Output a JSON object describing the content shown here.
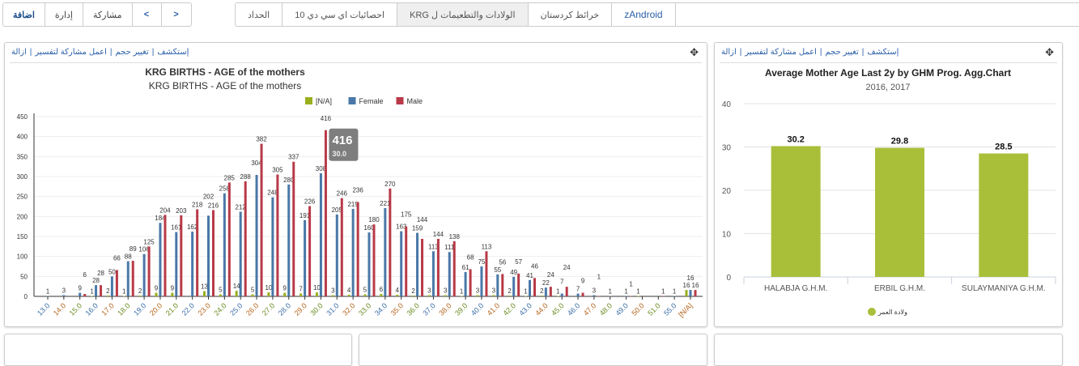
{
  "toolbar": {
    "buttons": [
      "اضافة",
      "إدارة",
      "مشاركة",
      "<",
      ">"
    ]
  },
  "tabs": [
    {
      "label": "الحداد"
    },
    {
      "label": "10 احصائيات اي سي دي"
    },
    {
      "label": "KRG الولادات والتطعيمات ل",
      "active": true
    },
    {
      "label": "خرائط كردستان"
    },
    {
      "label": "zAndroid"
    }
  ],
  "panel_actions": [
    "إستكشف",
    "تغيير حجم",
    "اعمل مشاركة لتفسير",
    "ازالة"
  ],
  "move_icon": "move-arrows-icon",
  "colors": {
    "na": "#9aaf1e",
    "female": "#4a78a8",
    "male": "#b83a48",
    "avg_bar": "#a9bf3a"
  },
  "chart_data": [
    {
      "type": "bar",
      "title": "KRG BIRTHS - AGE of the mothers",
      "subtitle": "KRG BIRTHS - AGE of the mothers",
      "legend_position": "top",
      "ylim": [
        0,
        450
      ],
      "yticks": [
        0,
        50,
        100,
        150,
        200,
        250,
        300,
        350,
        400,
        450
      ],
      "grid": true,
      "categories": [
        "13.0",
        "14.0",
        "15.0",
        "16.0",
        "17.0",
        "18.0",
        "19.0",
        "20.0",
        "21.0",
        "22.0",
        "23.0",
        "24.0",
        "25.0",
        "26.0",
        "27.0",
        "28.0",
        "29.0",
        "30.0",
        "31.0",
        "32.0",
        "33.0",
        "34.0",
        "35.0",
        "36.0",
        "37.0",
        "38.0",
        "39.0",
        "40.0",
        "41.0",
        "42.0",
        "43.0",
        "44.0",
        "45.0",
        "46.0",
        "47.0",
        "48.0",
        "49.0",
        "50.0",
        "51.0",
        "55.0",
        "[N/A]"
      ],
      "series": [
        {
          "name": "[N/A]",
          "values": [
            0,
            0,
            0,
            1,
            2,
            1,
            2,
            9,
            9,
            0,
            13,
            5,
            14,
            5,
            10,
            9,
            7,
            10,
            3,
            4,
            5,
            6,
            4,
            2,
            3,
            3,
            1,
            3,
            3,
            2,
            1,
            2,
            1,
            0,
            0,
            0,
            0,
            1,
            0,
            0,
            16
          ]
        },
        {
          "name": "Female",
          "values": [
            1,
            3,
            9,
            28,
            50,
            88,
            106,
            184,
            161,
            162,
            202,
            258,
            212,
            304,
            248,
            280,
            191,
            308,
            205,
            219,
            160,
            221,
            163,
            159,
            113,
            111,
            61,
            75,
            55,
            49,
            41,
            22,
            7,
            7,
            3,
            1,
            1,
            0,
            0,
            1,
            16
          ]
        },
        {
          "name": "Male",
          "values": [
            0,
            0,
            6,
            28,
            66,
            89,
            125,
            204,
            203,
            218,
            216,
            285,
            288,
            382,
            305,
            337,
            226,
            416,
            246,
            236,
            180,
            270,
            175,
            144,
            144,
            138,
            68,
            113,
            56,
            57,
            46,
            24,
            24,
            9,
            1,
            0,
            1,
            0,
            1,
            0,
            16
          ]
        }
      ],
      "tooltip": {
        "value": "416",
        "x": "30.0"
      }
    },
    {
      "type": "bar",
      "title": "Average Mother Age Last 2y by GHM Prog. Agg.Chart",
      "subtitle": "2016, 2017",
      "ylim": [
        0,
        40
      ],
      "yticks": [
        0,
        10,
        20,
        30,
        40
      ],
      "grid": true,
      "legend_position": "bottom",
      "categories": [
        "HALABJA G.H.M.",
        "ERBIL G.H.M.",
        "SULAYMANIYA G.H.M."
      ],
      "series": [
        {
          "name": "ولادة العمر",
          "values": [
            30.2,
            29.8,
            28.5
          ]
        }
      ]
    }
  ]
}
